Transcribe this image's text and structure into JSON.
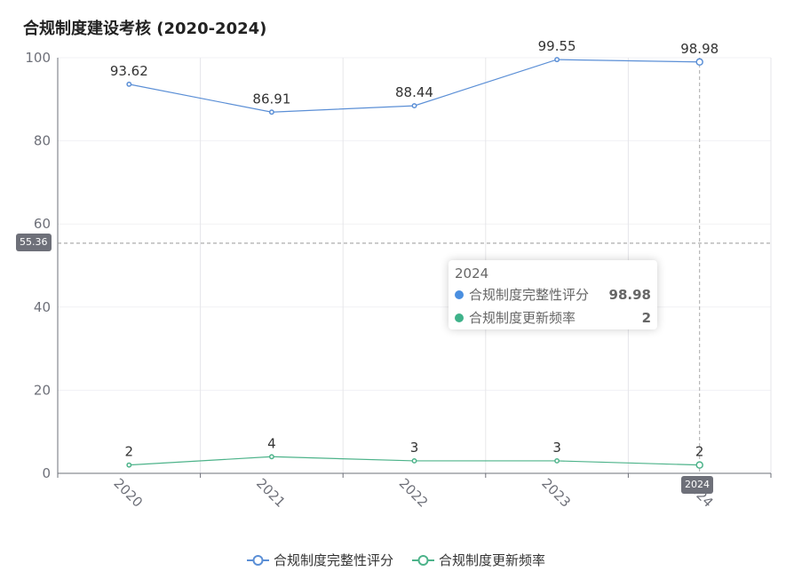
{
  "chart_data": {
    "type": "line",
    "title": "合规制度建设考核 (2020-2024)",
    "categories": [
      "2020",
      "2021",
      "2022",
      "2023",
      "2024"
    ],
    "ylim": [
      0,
      100
    ],
    "yticks": [
      0,
      20,
      40,
      60,
      80,
      100
    ],
    "grid": true,
    "legend_position": "bottom-center",
    "series": [
      {
        "name": "合规制度完整性评分",
        "values": [
          93.62,
          86.91,
          88.44,
          99.55,
          98.98
        ],
        "color": "#5b8fd6"
      },
      {
        "name": "合规制度更新频率",
        "values": [
          2,
          4,
          3,
          3,
          2
        ],
        "color": "#4db38a"
      }
    ],
    "axis_pointer": {
      "y_value": "55.36",
      "x_category": "2024"
    },
    "tooltip": {
      "header": "2024",
      "rows": [
        {
          "name": "合规制度完整性评分",
          "value": "98.98",
          "color": "#4a8fe0"
        },
        {
          "name": "合规制度更新频率",
          "value": "2",
          "color": "#3fb28a"
        }
      ]
    }
  }
}
